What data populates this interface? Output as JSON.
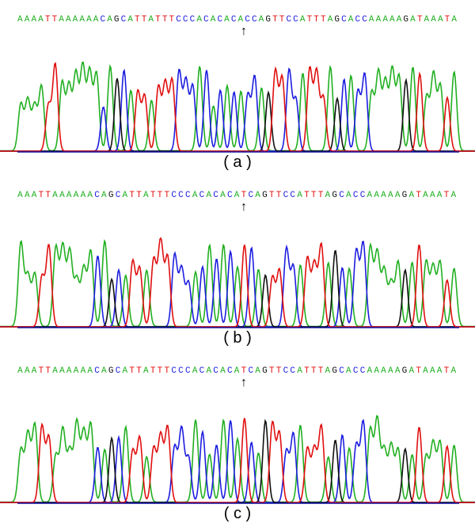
{
  "colors": {
    "A": "#22b022",
    "C": "#1e1ee0",
    "G": "#111111",
    "T": "#e01010",
    "baseline": "#000000"
  },
  "panels": [
    {
      "sequence": "AAAATTAAAAAACAGCATTATTTCCCACACACACCAGTTCCATTTAGCACCAAAAAGATAAATA",
      "arrow_base_index": 28,
      "caption": "( a )"
    },
    {
      "sequence": "AAATTAAAAAACAGCATTATTTCCCACACACATCAGTTCCATTTAGCACCAAAAAGATAAATA",
      "arrow_base_index": 28,
      "caption": "( b )"
    },
    {
      "sequence": "AAATTAAAAAACAGCATTATTTCCCACACACATCAGTTCCATTTAGCACCAAAAAGATAAATA",
      "arrow_base_index": 28,
      "caption": "( c )"
    }
  ],
  "panel_a": {
    "sequence": "AAAATTAAAAAACAGCATTATTTCCCACACACACCAGTTCCATTTAGCACCAAAAAGATAAATA",
    "caption": "( a )"
  },
  "panel_b": {
    "sequence": "AAATTAAAAAACAGCATTATTTCCCACACACATCAGTTCCATTTAGCACCAAAAAGATAAATA",
    "caption": "( b )"
  },
  "panel_c": {
    "sequence": "AAATTAAAAAACAGCATTATTTCCCACACACATCAGTTCCATTTAGCACCAAAAAGATAAATA",
    "caption": "( c )"
  },
  "arrow_symbol": "↑"
}
